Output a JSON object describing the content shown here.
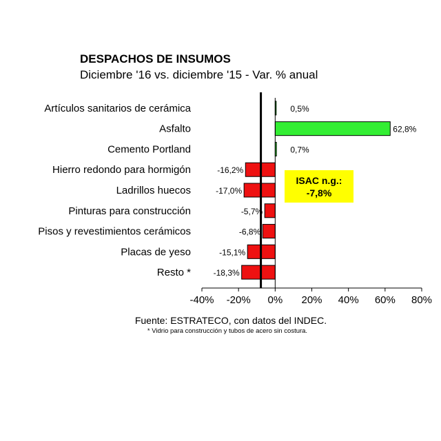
{
  "title": "DESPACHOS DE INSUMOS",
  "subtitle": "Diciembre '16 vs. diciembre '15 - Var. % anual",
  "source": "Fuente: ESTRATECO, con datos del INDEC.",
  "footnote": "* Vidrio para construcción y tubos de acero sin costura.",
  "isac": {
    "label": "ISAC n.g.:",
    "value": "-7,8%"
  },
  "colors": {
    "positive": "#33ee33",
    "negative": "#ee1111",
    "highlight": "#ffff00"
  },
  "chart_data": {
    "type": "bar",
    "orientation": "horizontal",
    "categories": [
      "Artículos sanitarios de cerámica",
      "Asfalto",
      "Cemento Portland",
      "Hierro redondo para hormigón",
      "Ladrillos huecos",
      "Pinturas para construcción",
      "Pisos y revestimientos cerámicos",
      "Placas de yeso",
      "Resto *"
    ],
    "values": [
      0.5,
      62.8,
      0.7,
      -16.2,
      -17.0,
      -5.7,
      -6.8,
      -15.1,
      -18.3
    ],
    "value_labels": [
      "0,5%",
      "62,8%",
      "0,7%",
      "-16,2%",
      "-17,0%",
      "-5,7%",
      "-6,8%",
      "-15,1%",
      "-18,3%"
    ],
    "xlim": [
      -40,
      80
    ],
    "xticks": [
      -40,
      -20,
      0,
      20,
      40,
      60,
      80
    ],
    "xtick_labels": [
      "-40%",
      "-20%",
      "0%",
      "20%",
      "40%",
      "60%",
      "80%"
    ],
    "reference_line": -7.8,
    "grid": false,
    "legend": "none"
  }
}
